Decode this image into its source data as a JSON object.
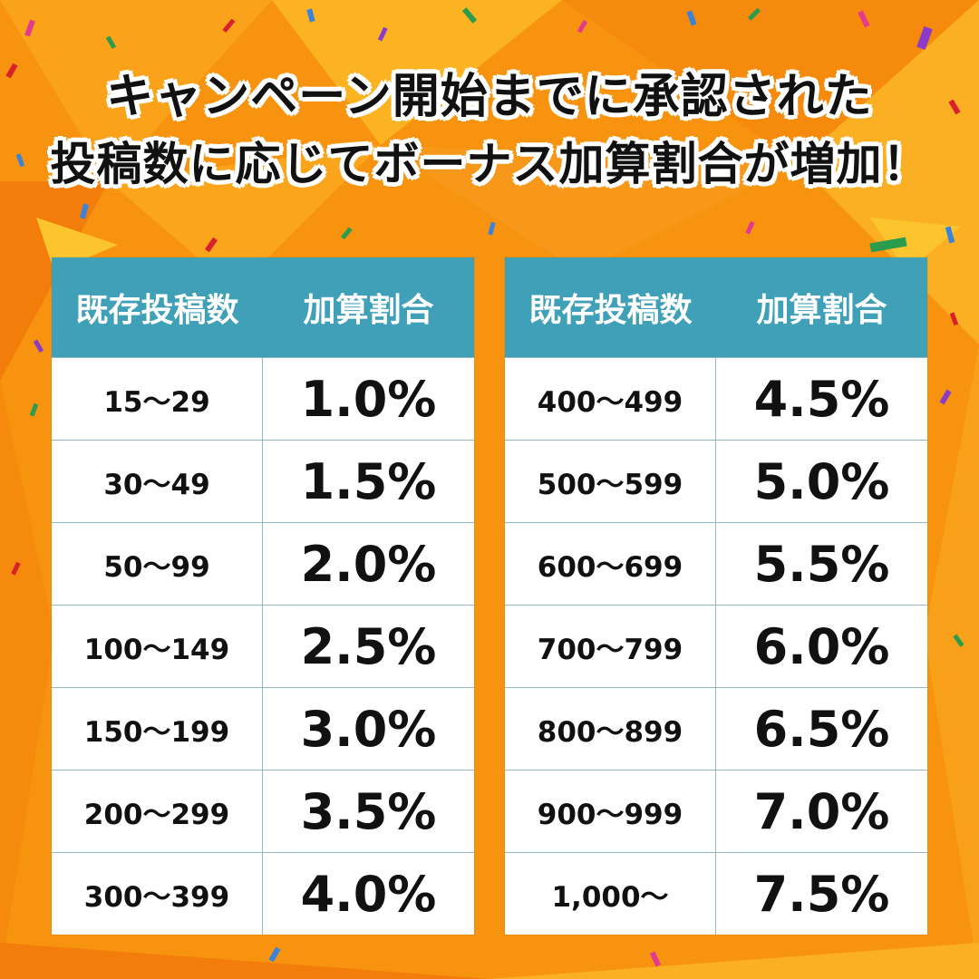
{
  "colors": {
    "background": "#f7930f",
    "header_bg": "#3fa0b8",
    "header_text": "#ffffff",
    "cell_bg": "#ffffff",
    "text": "#111111"
  },
  "headline": {
    "line1": "キャンペーン開始までに承認された",
    "line2": "投稿数に応じてボーナス加算割合が増加！"
  },
  "tables": [
    {
      "headers": [
        "既存投稿数",
        "加算割合"
      ],
      "rows": [
        {
          "range": "15〜29",
          "rate": "1.0%"
        },
        {
          "range": "30〜49",
          "rate": "1.5%"
        },
        {
          "range": "50〜99",
          "rate": "2.0%"
        },
        {
          "range": "100〜149",
          "rate": "2.5%"
        },
        {
          "range": "150〜199",
          "rate": "3.0%"
        },
        {
          "range": "200〜299",
          "rate": "3.5%"
        },
        {
          "range": "300〜399",
          "rate": "4.0%"
        }
      ]
    },
    {
      "headers": [
        "既存投稿数",
        "加算割合"
      ],
      "rows": [
        {
          "range": "400〜499",
          "rate": "4.5%"
        },
        {
          "range": "500〜599",
          "rate": "5.0%"
        },
        {
          "range": "600〜699",
          "rate": "5.5%"
        },
        {
          "range": "700〜799",
          "rate": "6.0%"
        },
        {
          "range": "800〜899",
          "rate": "6.5%"
        },
        {
          "range": "900〜999",
          "rate": "7.0%"
        },
        {
          "range": "1,000〜",
          "rate": "7.5%"
        }
      ]
    }
  ]
}
